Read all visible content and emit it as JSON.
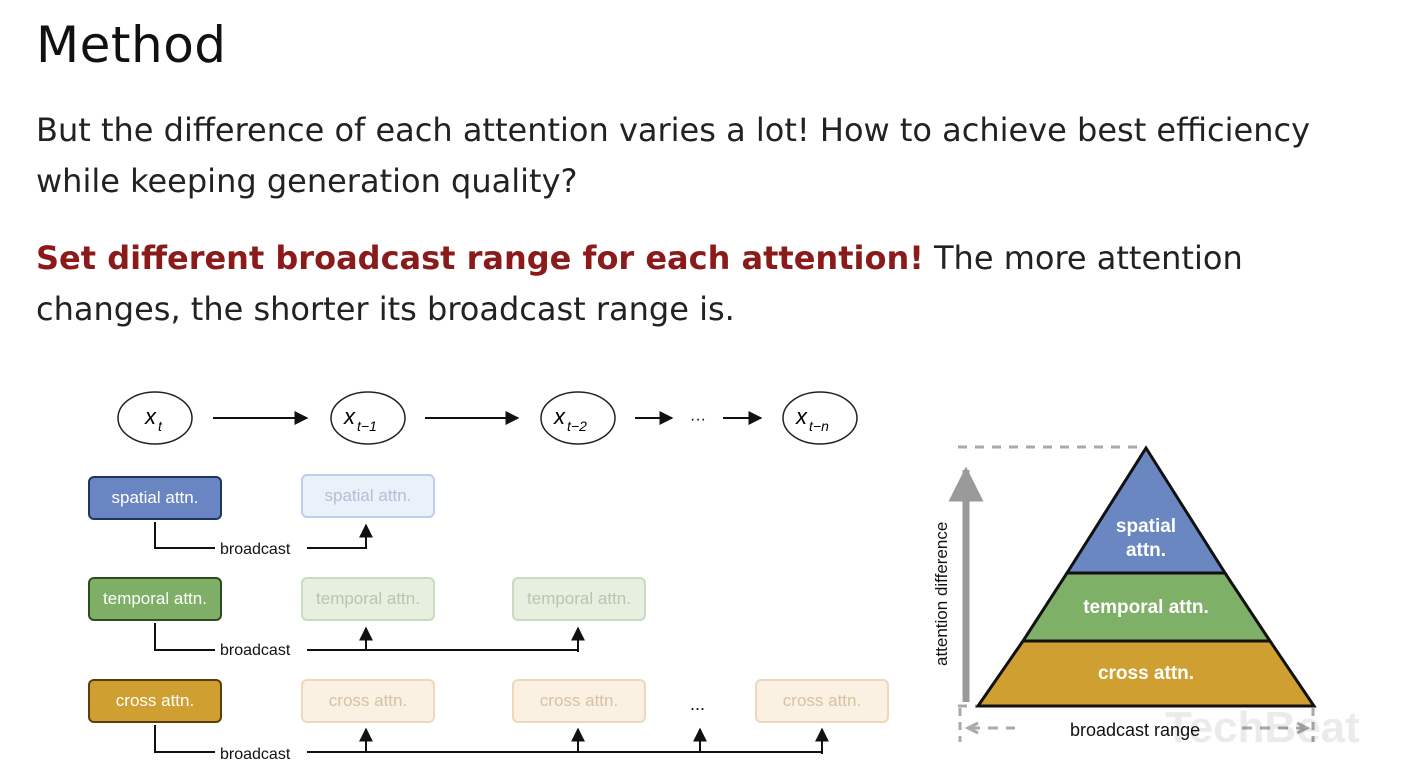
{
  "slide": {
    "title": "Method",
    "para1": "But the difference of each attention varies a lot! How to achieve best efficiency while keeping generation quality?",
    "para2_highlight": "Set different broadcast range for each attention!",
    "para2_rest": " The more attention changes, the shorter its broadcast range is."
  },
  "flow": {
    "nodes": [
      {
        "base": "x",
        "sub": "t"
      },
      {
        "base": "x",
        "sub": "t−1"
      },
      {
        "base": "x",
        "sub": "t−2"
      },
      {
        "base": "x",
        "sub": "t−n"
      }
    ],
    "ellipsis": "···",
    "rows": [
      {
        "label": "spatial attn.",
        "broadcast": "broadcast"
      },
      {
        "label": "temporal attn.",
        "broadcast": "broadcast"
      },
      {
        "label": "cross attn.",
        "broadcast": "broadcast"
      }
    ],
    "row_ellipsis": "..."
  },
  "pyramid": {
    "axis_label": "attention difference",
    "bottom_label": "broadcast range",
    "levels": [
      {
        "line1": "spatial",
        "line2": "attn.",
        "color": "#6b87c2"
      },
      {
        "line1": "temporal attn.",
        "color": "#7fb067"
      },
      {
        "line1": "cross attn.",
        "color": "#cf9f31"
      }
    ]
  },
  "watermark": "TechBeat"
}
